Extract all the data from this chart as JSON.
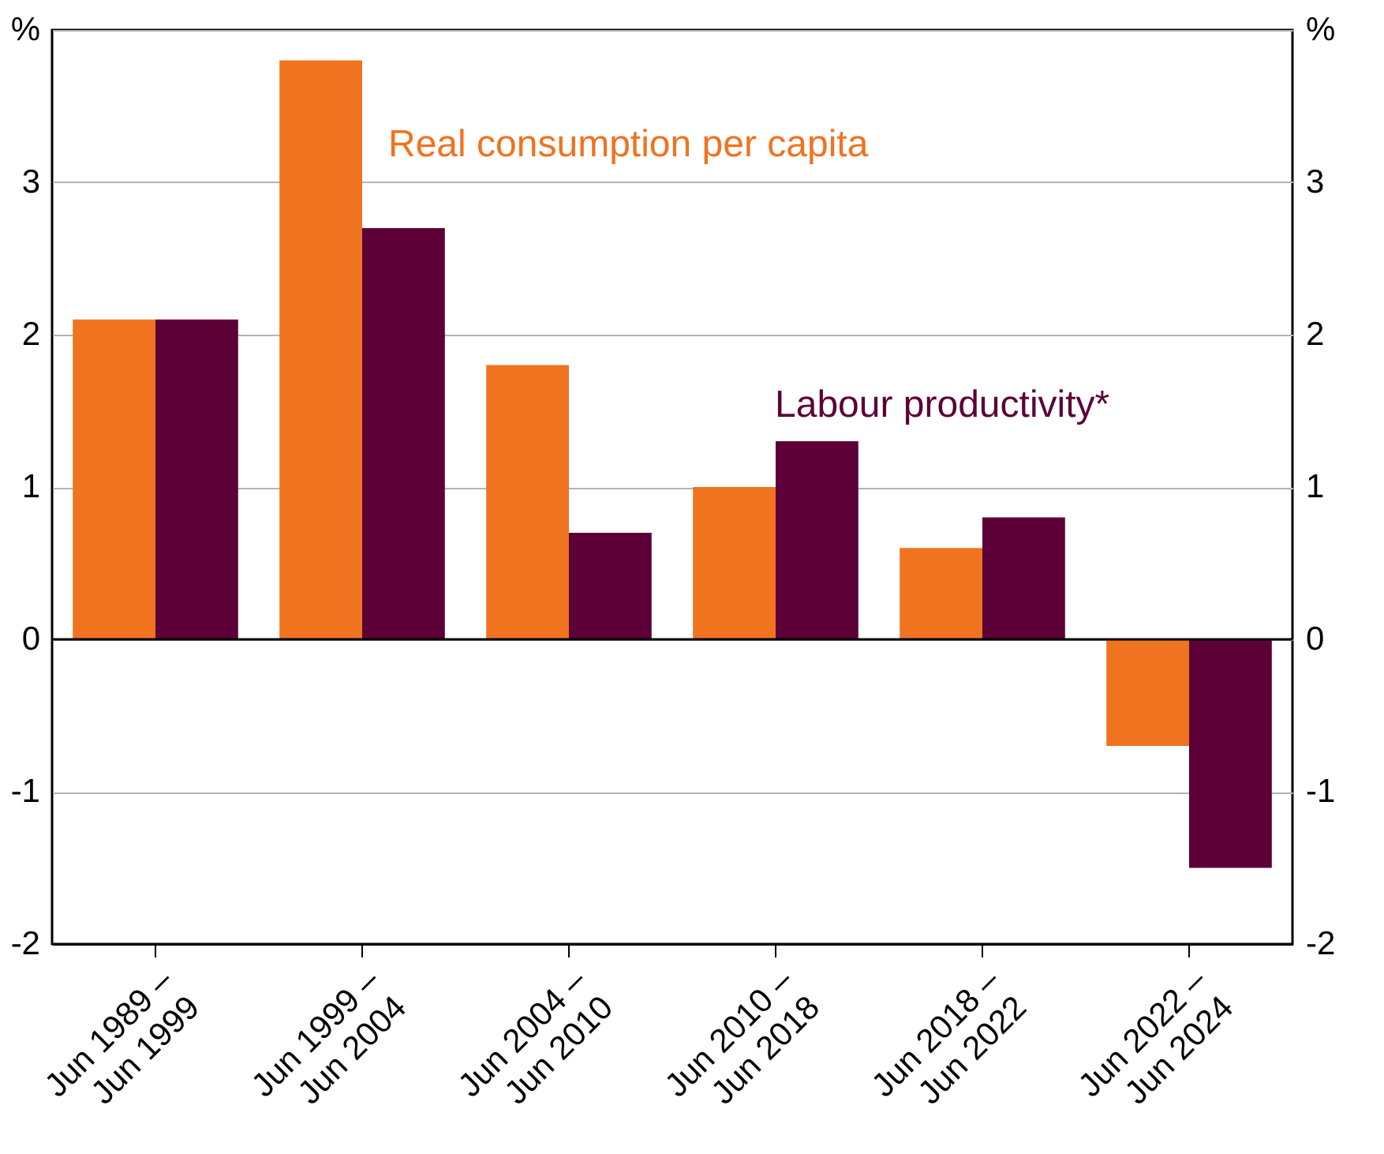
{
  "chart_data": {
    "type": "bar",
    "categories": [
      "Jun 1989 – Jun 1999",
      "Jun 1999 – Jun 2004",
      "Jun 2004 – Jun 2010",
      "Jun 2010 – Jun 2018",
      "Jun 2018 – Jun 2022",
      "Jun 2022 – Jun 2024"
    ],
    "series": [
      {
        "name": "Real consumption per capita",
        "color": "#f07320",
        "values": [
          2.1,
          3.8,
          1.8,
          1.0,
          0.6,
          -0.7
        ]
      },
      {
        "name": "Labour productivity*",
        "color": "#5c0037",
        "values": [
          2.1,
          2.7,
          0.7,
          1.3,
          0.8,
          -1.5
        ]
      }
    ],
    "ylim": [
      -2,
      4
    ],
    "yticks": [
      -2,
      -1,
      0,
      1,
      2,
      3,
      {
        "value": 4,
        "label": "%"
      }
    ],
    "y2lim": [
      -2,
      4
    ],
    "y2ticks": [
      -2,
      -1,
      0,
      1,
      2,
      3,
      {
        "value": 4,
        "label": "%"
      }
    ],
    "grid": "y",
    "legend": false
  }
}
